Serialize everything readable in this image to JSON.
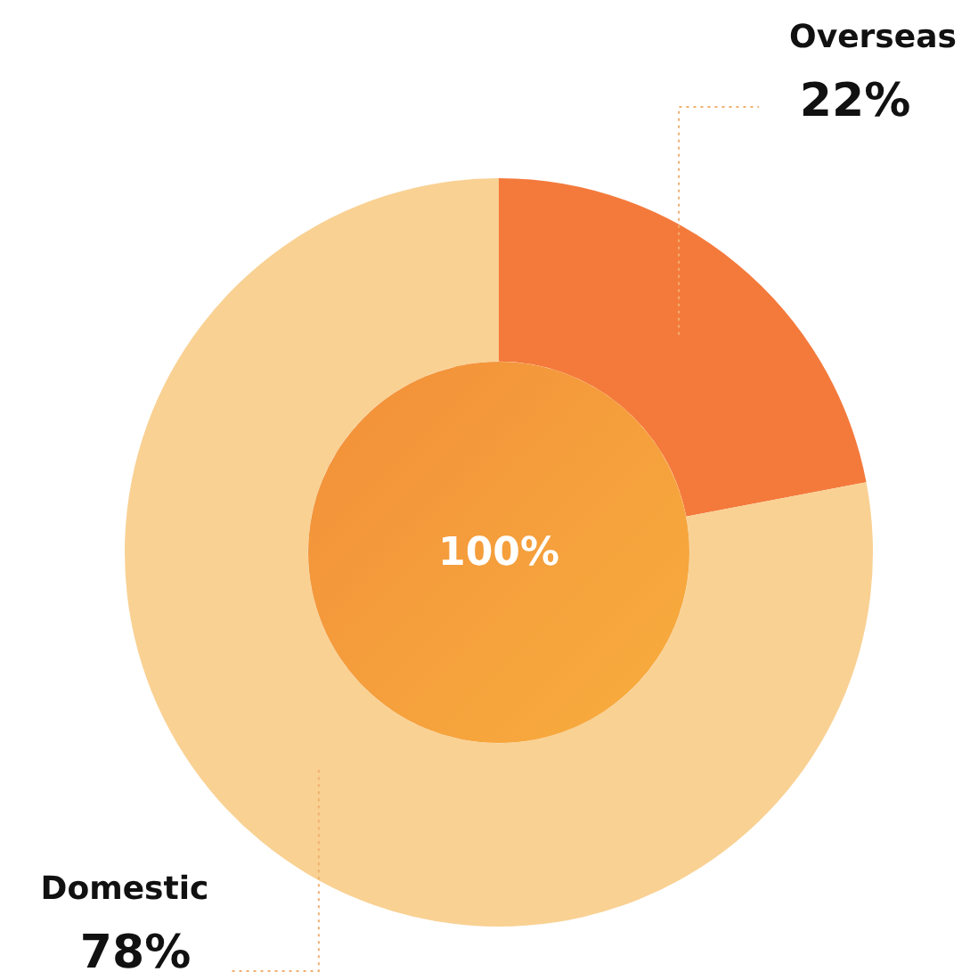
{
  "chart_data": {
    "type": "donut",
    "categories": [
      "Overseas",
      "Domestic"
    ],
    "values": [
      22,
      78
    ],
    "colors": [
      "#f47a3c",
      "#f9d193"
    ],
    "annotations": [
      "100%"
    ],
    "legend": false,
    "value_labels": [
      "22%",
      "78%"
    ]
  }
}
